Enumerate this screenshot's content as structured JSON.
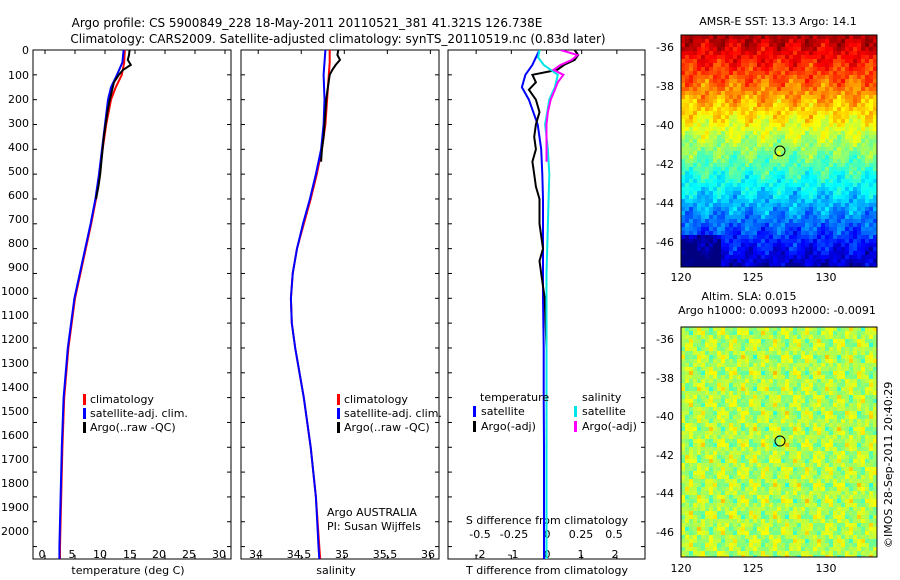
{
  "title": {
    "line1": "Argo profile: CS 5900849_228 18-May-2011 20110521_381 41.321S 126.738E",
    "line2": "Climatology: CARS2009. Satellite-adjusted climatology: synTS_20110519.nc (0.83d later)"
  },
  "credit": "©IMOS 28-Sep-2011 20:40:29",
  "colors": {
    "climatology": "#ff0000",
    "satellite": "#0000ff",
    "argo": "#000000",
    "salinity_satellite": "#00e5e5",
    "salinity_argo": "#ff00ff"
  },
  "chart_data": [
    {
      "type": "line",
      "name": "temperature",
      "xlabel": "temperature (deg C)",
      "xlim": [
        -2,
        31
      ],
      "xticks": [
        "0",
        "5",
        "10",
        "15",
        "20",
        "25",
        "30"
      ],
      "ylim": [
        0,
        2050
      ],
      "yticks": [
        "0",
        "100",
        "200",
        "300",
        "400",
        "500",
        "600",
        "700",
        "800",
        "900",
        "1000",
        "1100",
        "1200",
        "1300",
        "1400",
        "1500",
        "1600",
        "1700",
        "1800",
        "1900",
        "2000"
      ],
      "y_reversed": true,
      "legend": [
        "climatology",
        "satellite-adj. clim.",
        "Argo(..raw -QC)"
      ],
      "series": [
        {
          "name": "climatology",
          "color": "#ff0000",
          "depth": [
            0,
            50,
            100,
            150,
            200,
            300,
            400,
            500,
            600,
            700,
            800,
            900,
            1000,
            1200,
            1400,
            1600,
            1800,
            2000,
            2050
          ],
          "values": [
            13.3,
            13.2,
            12.8,
            11.8,
            11.0,
            10.2,
            9.6,
            9.1,
            8.5,
            7.7,
            6.8,
            5.9,
            5.0,
            3.9,
            3.2,
            2.9,
            2.7,
            2.5,
            2.5
          ]
        },
        {
          "name": "satellite-adj. clim.",
          "color": "#0000ff",
          "depth": [
            0,
            50,
            100,
            150,
            200,
            300,
            400,
            500,
            600,
            700,
            800,
            900,
            1000,
            1200,
            1400,
            1600,
            1800,
            2000,
            2050
          ],
          "values": [
            13.1,
            12.9,
            12.0,
            11.0,
            10.5,
            10.0,
            9.5,
            9.0,
            8.4,
            7.6,
            6.7,
            5.8,
            4.9,
            3.8,
            3.1,
            2.8,
            2.6,
            2.4,
            2.4
          ]
        },
        {
          "name": "Argo(..raw -QC)",
          "color": "#000000",
          "depth": [
            0,
            20,
            40,
            60,
            80,
            100,
            130,
            160,
            200,
            250,
            300,
            350,
            400,
            450,
            500,
            550,
            600
          ],
          "values": [
            14.1,
            14.0,
            13.8,
            14.3,
            13.0,
            12.3,
            11.5,
            11.2,
            10.8,
            10.4,
            10.1,
            9.8,
            9.6,
            9.4,
            9.2,
            8.9,
            8.5
          ]
        }
      ]
    },
    {
      "type": "line",
      "name": "salinity",
      "xlabel": "salinity",
      "xlim": [
        33.8,
        36.1
      ],
      "xticks": [
        "34",
        "34.5",
        "35",
        "35.5",
        "36"
      ],
      "ylim": [
        0,
        2050
      ],
      "y_reversed": true,
      "legend": [
        "climatology",
        "satellite-adj. clim.",
        "Argo(..raw -QC)"
      ],
      "annotation": [
        "Argo AUSTRALIA",
        "PI: Susan Wijffels"
      ],
      "series": [
        {
          "name": "climatology",
          "color": "#ff0000",
          "depth": [
            0,
            50,
            100,
            200,
            300,
            400,
            500,
            600,
            700,
            800,
            900,
            1000,
            1100,
            1200,
            1300,
            1400,
            1600,
            1800,
            2000,
            2050
          ],
          "values": [
            34.83,
            34.83,
            34.82,
            34.8,
            34.78,
            34.74,
            34.68,
            34.61,
            34.53,
            34.45,
            34.4,
            34.38,
            34.39,
            34.43,
            34.48,
            34.53,
            34.61,
            34.67,
            34.71,
            34.72
          ]
        },
        {
          "name": "satellite-adj. clim.",
          "color": "#0000ff",
          "depth": [
            0,
            50,
            100,
            200,
            300,
            400,
            500,
            600,
            700,
            800,
            900,
            1000,
            1100,
            1200,
            1300,
            1400,
            1600,
            1800,
            2000,
            2050
          ],
          "values": [
            34.78,
            34.77,
            34.76,
            34.77,
            34.76,
            34.73,
            34.67,
            34.6,
            34.52,
            34.45,
            34.4,
            34.38,
            34.39,
            34.43,
            34.48,
            34.53,
            34.61,
            34.67,
            34.7,
            34.71
          ]
        },
        {
          "name": "Argo(..raw -QC)",
          "color": "#000000",
          "depth": [
            0,
            20,
            40,
            60,
            80,
            100,
            150,
            200,
            250,
            300,
            350,
            400,
            450
          ],
          "values": [
            34.93,
            34.92,
            34.95,
            34.9,
            34.86,
            34.83,
            34.81,
            34.79,
            34.78,
            34.77,
            34.76,
            34.74,
            34.73
          ]
        }
      ]
    },
    {
      "type": "line",
      "name": "difference from climatology",
      "xlabel": "T difference from climatology",
      "xlabel_top": "S difference from climatology",
      "xlim": [
        -2.8,
        2.8
      ],
      "xticks": [
        "-2",
        "-1",
        "0",
        "1",
        "2"
      ],
      "xticks_top": [
        "-0.5",
        "-0.25",
        "0",
        "0.25",
        "0.5"
      ],
      "ylim": [
        0,
        2050
      ],
      "y_reversed": true,
      "legend_temperature": {
        "heading": "temperature",
        "items": [
          "satellite",
          "Argo(-adj)"
        ]
      },
      "legend_salinity": {
        "heading": "salinity",
        "items": [
          "satellite",
          "Argo(-adj)"
        ]
      },
      "series": [
        {
          "name": "temperature satellite",
          "color": "#0000ff",
          "depth": [
            0,
            30,
            60,
            100,
            150,
            200,
            300,
            400,
            500,
            600,
            700,
            800,
            900,
            1000,
            1200,
            1400,
            1600,
            1800,
            2000,
            2050
          ],
          "values": [
            -0.2,
            -0.3,
            -0.4,
            -0.6,
            -0.7,
            -0.5,
            -0.25,
            -0.15,
            -0.12,
            -0.1,
            -0.1,
            -0.1,
            -0.1,
            -0.1,
            -0.08,
            -0.08,
            -0.07,
            -0.07,
            -0.07,
            -0.07
          ]
        },
        {
          "name": "temperature Argo(-adj)",
          "color": "#000000",
          "depth": [
            0,
            20,
            40,
            60,
            80,
            100,
            130,
            160,
            200,
            250,
            300,
            350,
            400,
            450,
            500,
            550,
            600,
            700,
            800,
            850,
            900,
            1000,
            1200,
            1500,
            1800,
            2000,
            2050
          ],
          "values": [
            0.8,
            0.9,
            0.8,
            0.5,
            0.3,
            -0.4,
            -0.3,
            -0.5,
            -0.3,
            -0.2,
            -0.3,
            -0.35,
            -0.3,
            -0.4,
            -0.35,
            -0.3,
            -0.2,
            -0.2,
            -0.1,
            -0.2,
            -0.15,
            -0.05,
            0.0,
            0.0,
            0.0,
            0.0,
            0.0
          ]
        },
        {
          "name": "salinity satellite",
          "color": "#00e5e5",
          "depth": [
            0,
            30,
            60,
            100,
            150,
            200,
            300,
            400,
            500,
            700,
            900,
            1100,
            1400,
            1700,
            2000,
            2050
          ],
          "values": [
            -0.05,
            -0.06,
            -0.02,
            0.08,
            0.06,
            0.02,
            -0.01,
            0.01,
            0.02,
            0.01,
            0.0,
            0.0,
            0.0,
            0.0,
            0.0,
            0.0
          ]
        },
        {
          "name": "salinity Argo(-adj)",
          "color": "#ff00ff",
          "depth": [
            0,
            20,
            40,
            60,
            80,
            100,
            130,
            160,
            200,
            250,
            300,
            350,
            400,
            450
          ],
          "values": [
            0.1,
            0.22,
            0.18,
            0.1,
            0.05,
            0.12,
            0.08,
            0.06,
            0.03,
            0.01,
            0.0,
            0.0,
            0.0,
            0.0
          ]
        }
      ]
    },
    {
      "type": "heatmap",
      "name": "sst-map",
      "title": "AMSR-E SST: 13.3 Argo: 14.1",
      "xlim": [
        120,
        133.5
      ],
      "xticks": [
        "120",
        "125",
        "130"
      ],
      "ylim": [
        -47.3,
        -35.5
      ],
      "yticks": [
        "-36",
        "-38",
        "-40",
        "-42",
        "-44",
        "-46"
      ],
      "marker": {
        "lon": 126.738,
        "lat": -41.321
      }
    },
    {
      "type": "heatmap",
      "name": "sla-map",
      "title_lines": [
        "Altim. SLA: 0.015",
        "Argo h1000: 0.0093 h2000: -0.0091"
      ],
      "xlim": [
        120,
        133.5
      ],
      "xticks": [
        "120",
        "125",
        "130"
      ],
      "ylim": [
        -47.3,
        -35.5
      ],
      "yticks": [
        "-36",
        "-38",
        "-40",
        "-42",
        "-44",
        "-46"
      ],
      "marker": {
        "lon": 126.738,
        "lat": -41.321
      }
    }
  ]
}
